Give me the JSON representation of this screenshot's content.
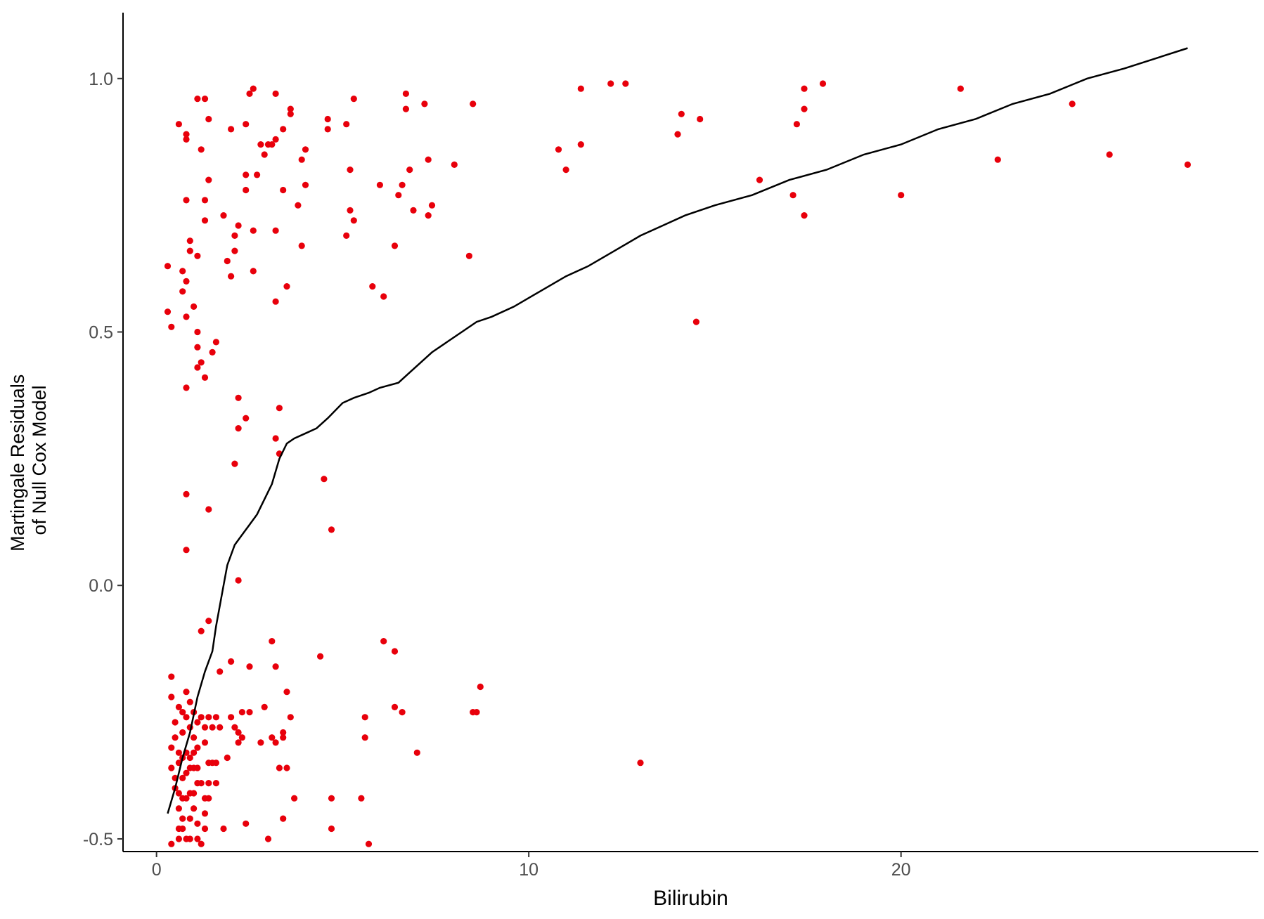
{
  "chart_data": {
    "type": "scatter",
    "title": "",
    "xlabel": "Bilirubin",
    "ylabel_lines": [
      "Martingale Residuals",
      "of Null Cox Model"
    ],
    "xlim": [
      -0.9,
      29.6
    ],
    "ylim": [
      -0.525,
      1.13
    ],
    "x_ticks": [
      0,
      10,
      20
    ],
    "x_tick_labels": [
      "0",
      "10",
      "20"
    ],
    "y_ticks": [
      -0.5,
      0.0,
      0.5,
      1.0
    ],
    "y_tick_labels": [
      "-0.5",
      "0.0",
      "0.5",
      "1.0"
    ],
    "grid": false,
    "legend": "none",
    "point_color": "#e8000b",
    "line_color": "#000000",
    "series": [
      {
        "type": "points",
        "points": [
          [
            0.3,
            0.63
          ],
          [
            0.3,
            0.54
          ],
          [
            0.4,
            0.51
          ],
          [
            0.6,
            0.91
          ],
          [
            0.7,
            0.62
          ],
          [
            0.7,
            0.58
          ],
          [
            0.8,
            0.6
          ],
          [
            0.8,
            0.53
          ],
          [
            0.8,
            0.76
          ],
          [
            0.8,
            0.89
          ],
          [
            0.8,
            0.88
          ],
          [
            0.9,
            0.68
          ],
          [
            0.9,
            0.66
          ],
          [
            1.0,
            0.55
          ],
          [
            1.1,
            0.96
          ],
          [
            1.1,
            0.65
          ],
          [
            1.1,
            0.5
          ],
          [
            1.1,
            0.47
          ],
          [
            1.2,
            0.44
          ],
          [
            1.1,
            0.43
          ],
          [
            1.2,
            0.86
          ],
          [
            1.3,
            0.96
          ],
          [
            1.3,
            0.76
          ],
          [
            1.3,
            0.72
          ],
          [
            1.3,
            0.41
          ],
          [
            1.4,
            0.92
          ],
          [
            1.4,
            0.8
          ],
          [
            1.5,
            0.46
          ],
          [
            1.6,
            0.48
          ],
          [
            0.8,
            0.39
          ],
          [
            0.8,
            0.18
          ],
          [
            0.8,
            0.07
          ],
          [
            1.4,
            0.15
          ],
          [
            1.8,
            0.73
          ],
          [
            1.9,
            0.64
          ],
          [
            2.0,
            0.61
          ],
          [
            2.0,
            0.9
          ],
          [
            2.1,
            0.66
          ],
          [
            2.1,
            0.69
          ],
          [
            2.2,
            0.71
          ],
          [
            2.2,
            0.37
          ],
          [
            2.2,
            0.31
          ],
          [
            2.2,
            0.01
          ],
          [
            2.1,
            0.24
          ],
          [
            2.4,
            0.33
          ],
          [
            2.4,
            0.91
          ],
          [
            2.4,
            0.78
          ],
          [
            2.4,
            0.81
          ],
          [
            2.5,
            0.97
          ],
          [
            2.6,
            0.98
          ],
          [
            2.6,
            0.7
          ],
          [
            2.6,
            0.62
          ],
          [
            2.7,
            0.81
          ],
          [
            2.8,
            0.87
          ],
          [
            2.9,
            0.85
          ],
          [
            3.0,
            0.87
          ],
          [
            3.1,
            0.87
          ],
          [
            3.2,
            0.88
          ],
          [
            3.2,
            0.97
          ],
          [
            3.2,
            0.7
          ],
          [
            3.2,
            0.56
          ],
          [
            3.3,
            0.35
          ],
          [
            3.2,
            0.29
          ],
          [
            3.3,
            0.26
          ],
          [
            3.4,
            0.9
          ],
          [
            3.4,
            0.78
          ],
          [
            3.5,
            0.59
          ],
          [
            3.6,
            0.94
          ],
          [
            3.6,
            0.93
          ],
          [
            3.8,
            0.75
          ],
          [
            3.9,
            0.84
          ],
          [
            4.0,
            0.86
          ],
          [
            4.0,
            0.79
          ],
          [
            3.9,
            0.67
          ],
          [
            4.6,
            0.92
          ],
          [
            4.6,
            0.9
          ],
          [
            5.1,
            0.91
          ],
          [
            5.1,
            0.69
          ],
          [
            5.2,
            0.82
          ],
          [
            5.2,
            0.74
          ],
          [
            5.3,
            0.96
          ],
          [
            5.3,
            0.72
          ],
          [
            5.8,
            0.59
          ],
          [
            6.0,
            0.79
          ],
          [
            6.1,
            0.57
          ],
          [
            6.4,
            0.67
          ],
          [
            6.5,
            0.77
          ],
          [
            6.6,
            0.79
          ],
          [
            6.7,
            0.97
          ],
          [
            6.7,
            0.94
          ],
          [
            6.8,
            0.82
          ],
          [
            6.9,
            0.74
          ],
          [
            7.2,
            0.95
          ],
          [
            7.3,
            0.84
          ],
          [
            7.3,
            0.73
          ],
          [
            7.4,
            0.75
          ],
          [
            8.0,
            0.83
          ],
          [
            8.4,
            0.65
          ],
          [
            8.5,
            0.95
          ],
          [
            4.5,
            0.21
          ],
          [
            4.7,
            0.11
          ],
          [
            10.8,
            0.86
          ],
          [
            11.0,
            0.82
          ],
          [
            11.4,
            0.98
          ],
          [
            11.4,
            0.87
          ],
          [
            12.2,
            0.99
          ],
          [
            12.6,
            0.99
          ],
          [
            14.0,
            0.89
          ],
          [
            14.1,
            0.93
          ],
          [
            14.5,
            0.52
          ],
          [
            14.6,
            0.92
          ],
          [
            16.2,
            0.8
          ],
          [
            17.1,
            0.77
          ],
          [
            17.2,
            0.91
          ],
          [
            17.4,
            0.73
          ],
          [
            17.4,
            0.98
          ],
          [
            17.4,
            0.94
          ],
          [
            17.9,
            0.99
          ],
          [
            20.0,
            0.77
          ],
          [
            21.6,
            0.98
          ],
          [
            22.6,
            0.84
          ],
          [
            24.6,
            0.95
          ],
          [
            25.6,
            0.85
          ],
          [
            27.7,
            0.83
          ],
          [
            0.4,
            -0.18
          ],
          [
            0.4,
            -0.22
          ],
          [
            0.5,
            -0.27
          ],
          [
            0.5,
            -0.3
          ],
          [
            0.4,
            -0.32
          ],
          [
            0.4,
            -0.36
          ],
          [
            0.5,
            -0.38
          ],
          [
            0.5,
            -0.4
          ],
          [
            0.6,
            -0.24
          ],
          [
            0.6,
            -0.33
          ],
          [
            0.6,
            -0.35
          ],
          [
            0.6,
            -0.41
          ],
          [
            0.6,
            -0.44
          ],
          [
            0.6,
            -0.48
          ],
          [
            0.6,
            -0.5
          ],
          [
            0.4,
            -0.51
          ],
          [
            0.7,
            -0.25
          ],
          [
            0.7,
            -0.29
          ],
          [
            0.7,
            -0.34
          ],
          [
            0.7,
            -0.38
          ],
          [
            0.7,
            -0.42
          ],
          [
            0.7,
            -0.46
          ],
          [
            0.7,
            -0.48
          ],
          [
            0.8,
            -0.21
          ],
          [
            0.8,
            -0.26
          ],
          [
            0.8,
            -0.33
          ],
          [
            0.8,
            -0.37
          ],
          [
            0.8,
            -0.42
          ],
          [
            0.8,
            -0.5
          ],
          [
            0.9,
            -0.23
          ],
          [
            0.9,
            -0.28
          ],
          [
            0.9,
            -0.34
          ],
          [
            0.9,
            -0.36
          ],
          [
            0.9,
            -0.41
          ],
          [
            0.9,
            -0.46
          ],
          [
            0.9,
            -0.5
          ],
          [
            1.0,
            -0.25
          ],
          [
            1.0,
            -0.3
          ],
          [
            1.0,
            -0.33
          ],
          [
            1.0,
            -0.36
          ],
          [
            1.0,
            -0.41
          ],
          [
            1.0,
            -0.44
          ],
          [
            1.1,
            -0.27
          ],
          [
            1.1,
            -0.32
          ],
          [
            1.1,
            -0.36
          ],
          [
            1.1,
            -0.39
          ],
          [
            1.1,
            -0.47
          ],
          [
            1.1,
            -0.5
          ],
          [
            1.2,
            -0.09
          ],
          [
            1.2,
            -0.26
          ],
          [
            1.2,
            -0.39
          ],
          [
            1.2,
            -0.51
          ],
          [
            1.3,
            -0.28
          ],
          [
            1.3,
            -0.31
          ],
          [
            1.3,
            -0.42
          ],
          [
            1.3,
            -0.45
          ],
          [
            1.3,
            -0.48
          ],
          [
            1.4,
            -0.07
          ],
          [
            1.4,
            -0.26
          ],
          [
            1.4,
            -0.35
          ],
          [
            1.4,
            -0.39
          ],
          [
            1.4,
            -0.42
          ],
          [
            1.5,
            -0.28
          ],
          [
            1.5,
            -0.35
          ],
          [
            1.6,
            -0.26
          ],
          [
            1.6,
            -0.35
          ],
          [
            1.6,
            -0.39
          ],
          [
            1.7,
            -0.17
          ],
          [
            1.7,
            -0.28
          ],
          [
            1.8,
            -0.48
          ],
          [
            1.9,
            -0.34
          ],
          [
            2.0,
            -0.26
          ],
          [
            2.0,
            -0.15
          ],
          [
            2.1,
            -0.28
          ],
          [
            2.2,
            -0.29
          ],
          [
            2.2,
            -0.31
          ],
          [
            2.3,
            -0.3
          ],
          [
            2.3,
            -0.25
          ],
          [
            2.4,
            -0.47
          ],
          [
            2.5,
            -0.16
          ],
          [
            2.5,
            -0.25
          ],
          [
            2.8,
            -0.31
          ],
          [
            2.9,
            -0.24
          ],
          [
            3.0,
            -0.5
          ],
          [
            3.1,
            -0.11
          ],
          [
            3.1,
            -0.3
          ],
          [
            3.2,
            -0.16
          ],
          [
            3.2,
            -0.31
          ],
          [
            3.3,
            -0.36
          ],
          [
            3.4,
            -0.29
          ],
          [
            3.4,
            -0.3
          ],
          [
            3.4,
            -0.46
          ],
          [
            3.5,
            -0.21
          ],
          [
            3.5,
            -0.36
          ],
          [
            3.6,
            -0.26
          ],
          [
            3.7,
            -0.42
          ],
          [
            4.4,
            -0.14
          ],
          [
            4.7,
            -0.42
          ],
          [
            4.7,
            -0.48
          ],
          [
            5.5,
            -0.42
          ],
          [
            5.6,
            -0.26
          ],
          [
            5.6,
            -0.3
          ],
          [
            5.7,
            -0.51
          ],
          [
            6.1,
            -0.11
          ],
          [
            6.4,
            -0.13
          ],
          [
            6.4,
            -0.24
          ],
          [
            6.6,
            -0.25
          ],
          [
            7.0,
            -0.33
          ],
          [
            8.5,
            -0.25
          ],
          [
            8.6,
            -0.25
          ],
          [
            8.7,
            -0.2
          ],
          [
            13.0,
            -0.35
          ]
        ]
      },
      {
        "type": "line",
        "points": [
          [
            0.3,
            -0.45
          ],
          [
            0.5,
            -0.4
          ],
          [
            0.7,
            -0.34
          ],
          [
            0.9,
            -0.29
          ],
          [
            1.1,
            -0.22
          ],
          [
            1.3,
            -0.17
          ],
          [
            1.5,
            -0.13
          ],
          [
            1.6,
            -0.08
          ],
          [
            1.8,
            0.0
          ],
          [
            1.9,
            0.04
          ],
          [
            2.1,
            0.08
          ],
          [
            2.3,
            0.1
          ],
          [
            2.5,
            0.12
          ],
          [
            2.7,
            0.14
          ],
          [
            2.9,
            0.17
          ],
          [
            3.1,
            0.2
          ],
          [
            3.3,
            0.25
          ],
          [
            3.5,
            0.28
          ],
          [
            3.7,
            0.29
          ],
          [
            4.0,
            0.3
          ],
          [
            4.3,
            0.31
          ],
          [
            4.6,
            0.33
          ],
          [
            5.0,
            0.36
          ],
          [
            5.3,
            0.37
          ],
          [
            5.7,
            0.38
          ],
          [
            6.0,
            0.39
          ],
          [
            6.5,
            0.4
          ],
          [
            6.8,
            0.42
          ],
          [
            7.1,
            0.44
          ],
          [
            7.4,
            0.46
          ],
          [
            7.8,
            0.48
          ],
          [
            8.2,
            0.5
          ],
          [
            8.6,
            0.52
          ],
          [
            9.0,
            0.53
          ],
          [
            9.6,
            0.55
          ],
          [
            10.3,
            0.58
          ],
          [
            11.0,
            0.61
          ],
          [
            11.6,
            0.63
          ],
          [
            12.3,
            0.66
          ],
          [
            13.0,
            0.69
          ],
          [
            13.6,
            0.71
          ],
          [
            14.2,
            0.73
          ],
          [
            15.0,
            0.75
          ],
          [
            16.0,
            0.77
          ],
          [
            17.0,
            0.8
          ],
          [
            18.0,
            0.82
          ],
          [
            19.0,
            0.85
          ],
          [
            20.0,
            0.87
          ],
          [
            21.0,
            0.9
          ],
          [
            22.0,
            0.92
          ],
          [
            23.0,
            0.95
          ],
          [
            24.0,
            0.97
          ],
          [
            25.0,
            1.0
          ],
          [
            26.0,
            1.02
          ],
          [
            27.7,
            1.06
          ]
        ]
      }
    ]
  }
}
